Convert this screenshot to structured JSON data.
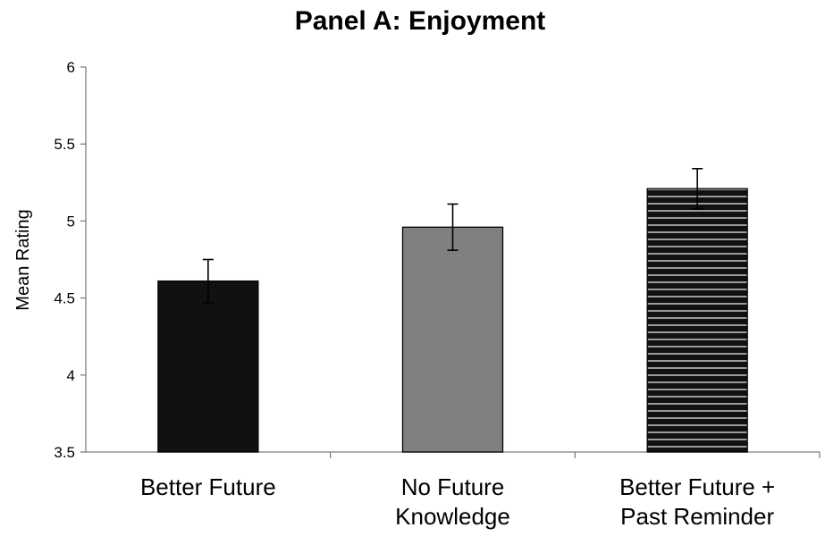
{
  "chart_data": {
    "type": "bar",
    "title": "Panel A: Enjoyment",
    "xlabel": "",
    "ylabel": "Mean Rating",
    "ylim": [
      3.5,
      6
    ],
    "yticks": [
      "3.5",
      "4",
      "4.5",
      "5",
      "5.5",
      "6"
    ],
    "grid": false,
    "categories": [
      [
        "Better Future"
      ],
      [
        "No Future",
        "Knowledge"
      ],
      [
        "Better Future +",
        "Past Reminder"
      ]
    ],
    "values": [
      4.61,
      4.96,
      5.21
    ],
    "error": [
      0.14,
      0.15,
      0.13
    ],
    "bar_styles": [
      {
        "fill": "#111111",
        "pattern": "solid"
      },
      {
        "fill": "#808080",
        "pattern": "solid"
      },
      {
        "fill": "#111111",
        "pattern": "horizontal-stripes",
        "stripe_color": "#9a9a9a"
      }
    ]
  }
}
